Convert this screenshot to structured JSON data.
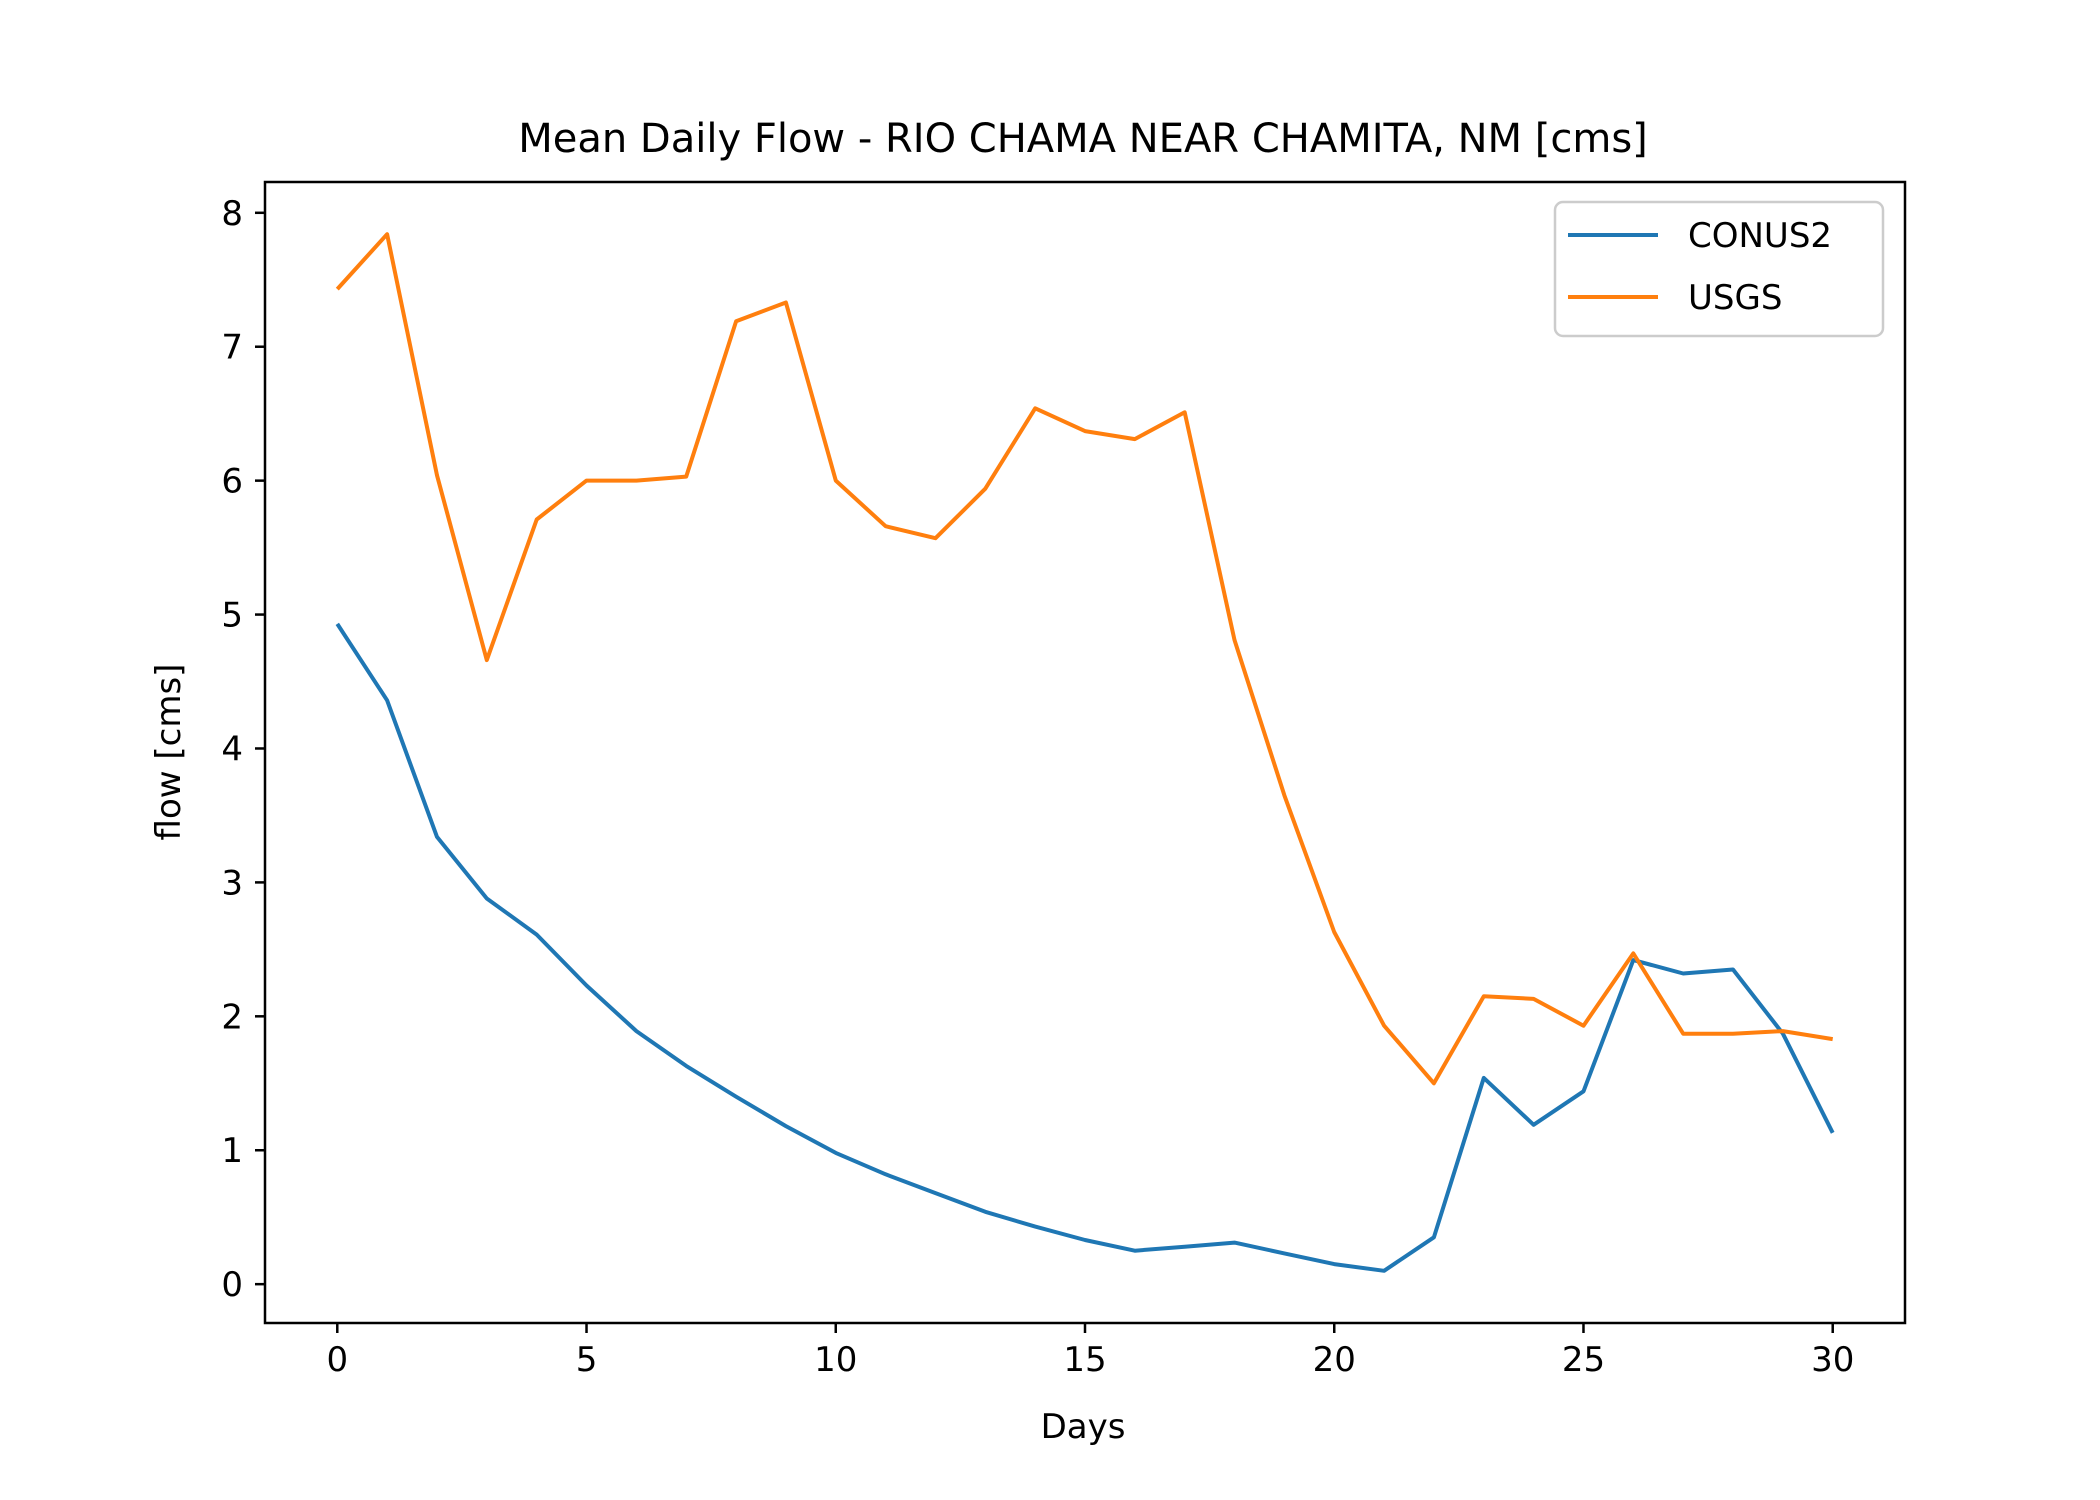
{
  "chart_data": {
    "type": "line",
    "title": "Mean Daily Flow - RIO CHAMA NEAR CHAMITA, NM [cms]",
    "xlabel": "Days",
    "ylabel": "flow [cms]",
    "xlim": [
      -1.45,
      31.45
    ],
    "ylim": [
      -0.29,
      8.23
    ],
    "xticks": [
      0,
      5,
      10,
      15,
      20,
      25,
      30
    ],
    "yticks": [
      0,
      1,
      2,
      3,
      4,
      5,
      6,
      7,
      8
    ],
    "grid": false,
    "legend_position": "top-right",
    "x": [
      0,
      1,
      2,
      3,
      4,
      5,
      6,
      7,
      8,
      9,
      10,
      11,
      12,
      13,
      14,
      15,
      16,
      17,
      18,
      19,
      20,
      21,
      22,
      23,
      24,
      25,
      26,
      27,
      28,
      29,
      30
    ],
    "series": [
      {
        "name": "CONUS2",
        "color": "#1f77b4",
        "values": [
          4.93,
          4.36,
          3.34,
          2.88,
          2.61,
          2.23,
          1.89,
          1.63,
          1.4,
          1.18,
          0.98,
          0.82,
          0.68,
          0.54,
          0.43,
          0.33,
          0.25,
          0.28,
          0.31,
          0.23,
          0.15,
          0.1,
          0.35,
          1.54,
          1.19,
          1.44,
          2.42,
          2.32,
          2.35,
          1.87,
          1.13
        ]
      },
      {
        "name": "USGS",
        "color": "#ff7f0e",
        "values": [
          7.43,
          7.84,
          6.04,
          4.66,
          5.71,
          6.0,
          6.0,
          6.03,
          7.19,
          7.33,
          6.0,
          5.66,
          5.57,
          5.94,
          6.54,
          6.37,
          6.31,
          6.51,
          4.81,
          3.65,
          2.63,
          1.93,
          1.5,
          2.15,
          2.13,
          1.93,
          2.47,
          1.87,
          1.87,
          1.89,
          1.83
        ]
      }
    ]
  }
}
